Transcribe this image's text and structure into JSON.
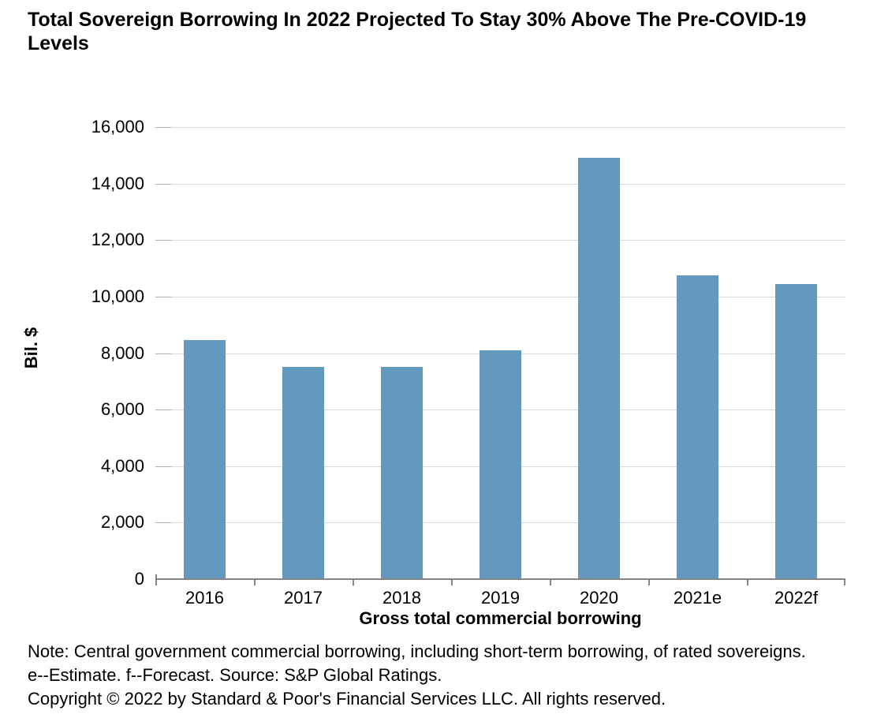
{
  "title": "Total Sovereign Borrowing In 2022 Projected To Stay 30% Above The Pre-COVID-19 Levels",
  "chart_data": {
    "type": "bar",
    "title": "Total Sovereign Borrowing In 2022 Projected To Stay 30% Above The Pre-COVID-19 Levels",
    "categories": [
      "2016",
      "2017",
      "2018",
      "2019",
      "2020",
      "2021e",
      "2022f"
    ],
    "values": [
      8450,
      7500,
      7500,
      8100,
      14900,
      10750,
      10450
    ],
    "xlabel": "Gross total commercial borrowing",
    "ylabel": "Bil. $",
    "ylim": [
      0,
      16000
    ],
    "ytick_interval": 2000,
    "ytick_labels": [
      "0",
      "2,000",
      "4,000",
      "6,000",
      "8,000",
      "10,000",
      "12,000",
      "14,000",
      "16,000"
    ],
    "grid": true,
    "legend_position": "none",
    "colors": {
      "bar": "#6399bc",
      "gridline": "#d9d9d9",
      "gridline_start_tick": "#adadad",
      "axis": "#848484",
      "text": "#000000",
      "background": "#ffffff"
    }
  },
  "notes": [
    "Note: Central government commercial borrowing, including short-term borrowing, of rated sovereigns.",
    "e--Estimate. f--Forecast. Source: S&P Global Ratings.",
    "Copyright © 2022 by Standard & Poor's Financial Services LLC. All rights reserved."
  ]
}
